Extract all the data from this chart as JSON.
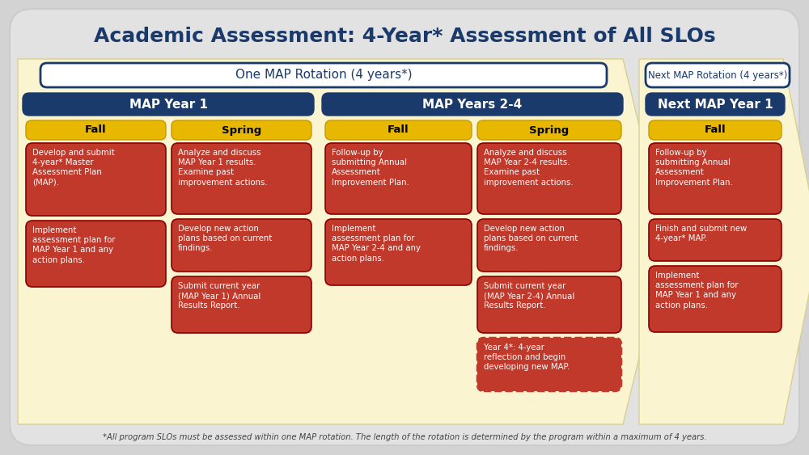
{
  "title": "Academic Assessment: 4-Year* Assessment of All SLOs",
  "bg_color": "#d3d3d3",
  "title_color": "#1a3a6b",
  "rotation_label_1": "One MAP Rotation (4 years*)",
  "rotation_label_2": "Next MAP Rotation (4 years*)",
  "section_header_color": "#1a3a6b",
  "arrow_color": "#faf5d0",
  "season_box_color": "#e8b800",
  "card_color": "#c0392b",
  "card_text_color": "#ffffff",
  "footnote": "*All program SLOs must be assessed within one MAP rotation. The length of the rotation is determined by the program within a maximum of 4 years.",
  "col0_header": "MAP Year 1",
  "col1_header": "MAP Years 2-4",
  "col2_header": "Next MAP Year 1",
  "col0_fall_cards": [
    "Develop and submit\n4-year* Master\nAssessment Plan\n(MAP).",
    "Implement\nassessment plan for\nMAP Year 1 and any\naction plans."
  ],
  "col0_fall_bold": [
    [
      "Develop",
      "submit"
    ],
    [
      "Implement",
      "MAP Year 1"
    ]
  ],
  "col0_spring_cards": [
    "Analyze and discuss\nMAP Year 1 results.\nExamine past\nimprovement actions.",
    "Develop new action\nplans based on current\nfindings.",
    "Submit current year\n(MAP Year 1) Annual\nResults Report."
  ],
  "col1_fall_cards": [
    "Follow-up by\nsubmitting Annual\nAssessment\nImprovement Plan.",
    "Implement\nassessment plan for\nMAP Year 2-4 and any\naction plans."
  ],
  "col1_spring_cards": [
    "Analyze and discuss\nMAP Year 2-4 results.\nExamine past\nimprovement actions.",
    "Develop new action\nplans based on current\nfindings.",
    "Submit current year\n(MAP Year 2-4) Annual\nResults Report.",
    "Year 4*: 4-year\nreflection and begin\ndeveloping new MAP."
  ],
  "col2_fall_cards": [
    "Follow-up by\nsubmitting Annual\nAssessment\nImprovement Plan.",
    "Finish and submit new\n4-year* MAP.",
    "Implement\nassessment plan for\nMAP Year 1 and any\naction plans."
  ]
}
